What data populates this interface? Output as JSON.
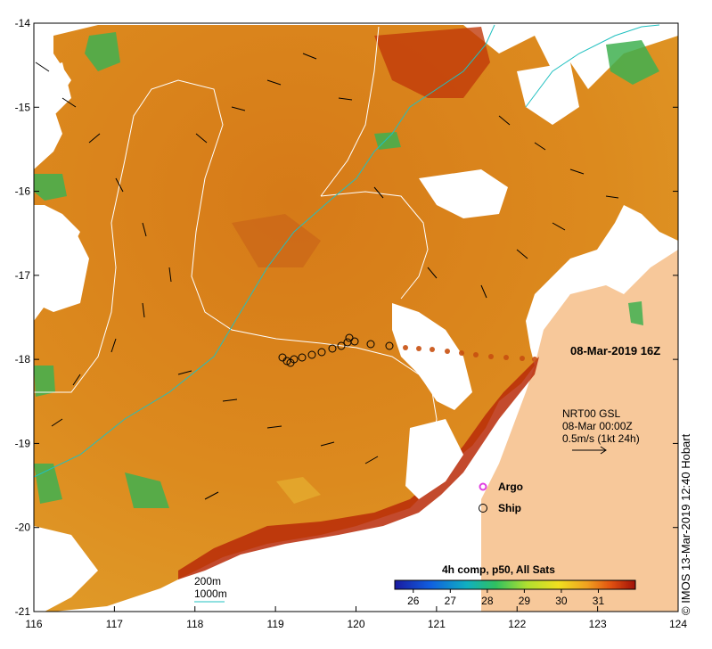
{
  "map": {
    "lon_ticks": [
      "116",
      "117",
      "118",
      "119",
      "120",
      "121",
      "122",
      "123",
      "124"
    ],
    "lat_ticks": [
      "-14",
      "-15",
      "-16",
      "-17",
      "-18",
      "-19",
      "-20",
      "-21"
    ],
    "lon_range": [
      116,
      124
    ],
    "lat_range": [
      -21,
      -14
    ],
    "timestamp": "08-Mar-2019 16Z",
    "current_info": {
      "line1": "NRT00 GSL",
      "line2": "08-Mar 00:00Z",
      "line3": "0.5m/s (1kt 24h)"
    },
    "legend": {
      "argo_label": "Argo",
      "ship_label": "Ship",
      "argo_color": "#e040e0"
    },
    "contours": {
      "label_200": "200m",
      "label_1000": "1000m",
      "color_200": "#ffffff",
      "color_1000": "#20c0c0"
    },
    "colorbar": {
      "title": "4h comp, p50, All Sats",
      "ticks": [
        "26",
        "27",
        "28",
        "29",
        "30",
        "31"
      ],
      "range": [
        25.5,
        32
      ]
    },
    "credit": "© IMOS 13-Mar-2019 12:40 Hobart",
    "colors": {
      "land": "#f7c89a",
      "sst_warm": "#d98016",
      "sst_hot": "#b82a08",
      "cloud": "#ffffff"
    }
  }
}
